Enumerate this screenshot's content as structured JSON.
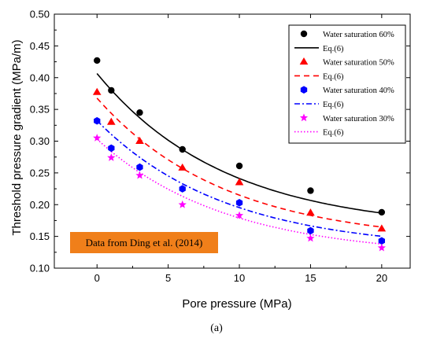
{
  "chart_data": {
    "type": "scatter",
    "xlabel": "Pore pressure (MPa)",
    "ylabel": "Threshold pressure gradient (MPa/m)",
    "xlim": [
      -3,
      22
    ],
    "ylim": [
      0.1,
      0.5
    ],
    "xticks": [
      0,
      5,
      10,
      15,
      20
    ],
    "yticks": [
      0.1,
      0.15,
      0.2,
      0.25,
      0.3,
      0.35,
      0.4,
      0.45,
      0.5
    ],
    "xtick_labels": [
      "0",
      "5",
      "10",
      "15",
      "20"
    ],
    "ytick_labels": [
      "0.10",
      "0.15",
      "0.20",
      "0.25",
      "0.30",
      "0.35",
      "0.40",
      "0.45",
      "0.50"
    ],
    "legend_position": "top-right",
    "annotation": "Data from Ding et al. (2014)",
    "annotation_background": "#f07f1a",
    "series": [
      {
        "name": "Water saturation 60%",
        "fit_name": "Eq.(6)",
        "marker": "circle",
        "line_style": "solid",
        "color": "#000000",
        "x": [
          0,
          1,
          3,
          6,
          10,
          15,
          20
        ],
        "y": [
          0.427,
          0.38,
          0.345,
          0.287,
          0.261,
          0.222,
          0.188
        ],
        "fit": {
          "a": 0.2465,
          "b": 0.111,
          "c": 0.16
        }
      },
      {
        "name": "Water saturation 50%",
        "fit_name": "Eq.(6)",
        "marker": "triangle",
        "line_style": "dashed",
        "color": "#ff0000",
        "x": [
          0,
          1,
          3,
          6,
          10,
          15,
          20
        ],
        "y": [
          0.377,
          0.33,
          0.3,
          0.258,
          0.235,
          0.187,
          0.162
        ],
        "fit": {
          "a": 0.2277,
          "b": 0.111,
          "c": 0.14
        }
      },
      {
        "name": "Water saturation 40%",
        "fit_name": "Eq.(6)",
        "marker": "hexagon",
        "line_style": "dashdot",
        "color": "#0000ff",
        "x": [
          0,
          1,
          3,
          6,
          10,
          15,
          20
        ],
        "y": [
          0.332,
          0.289,
          0.259,
          0.225,
          0.203,
          0.159,
          0.143
        ],
        "fit": {
          "a": 0.2042,
          "b": 0.111,
          "c": 0.128
        }
      },
      {
        "name": "Water saturation 30%",
        "fit_name": "Eq.(6)",
        "marker": "star",
        "line_style": "dotted",
        "color": "#ff00ff",
        "x": [
          0,
          1,
          3,
          6,
          10,
          15,
          20
        ],
        "y": [
          0.305,
          0.274,
          0.246,
          0.2,
          0.183,
          0.147,
          0.132
        ],
        "fit": {
          "a": 0.1852,
          "b": 0.111,
          "c": 0.118
        }
      }
    ]
  },
  "caption": "(a)"
}
